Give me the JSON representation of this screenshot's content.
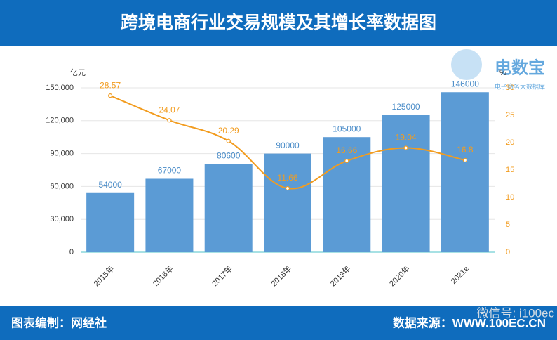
{
  "chart_data": {
    "type": "bar",
    "title": "跨境电商行业交易规模及其增长率数据图",
    "y_unit": "亿元",
    "y2_unit": "%",
    "categories": [
      "2015年",
      "2016年",
      "2017年",
      "2018年",
      "2019年",
      "2020年",
      "2021e"
    ],
    "series": [
      {
        "name": "交易规模",
        "color": "#5b9bd5",
        "label_color": "#4a8cc8",
        "values": [
          54000,
          67000,
          80600,
          90000,
          105000,
          125000,
          146000
        ]
      },
      {
        "name": "增长率",
        "type": "line",
        "axis": "y2",
        "color": "#f29c1f",
        "values": [
          28.57,
          24.07,
          20.29,
          11.66,
          16.66,
          19.04,
          16.8
        ]
      }
    ],
    "ylim": [
      0,
      150000
    ],
    "yticks": [
      0,
      {
        "value": 30000,
        "label": "30,000"
      },
      {
        "value": 60000,
        "label": "60,000"
      },
      {
        "value": 90000,
        "label": "90,000"
      },
      {
        "value": 120000,
        "label": "120,000"
      },
      {
        "value": 150000,
        "label": "150,000"
      }
    ],
    "y2lim": [
      0,
      30
    ],
    "y2ticks": [
      0,
      5,
      10,
      15,
      20,
      25,
      30
    ],
    "grid": true,
    "credit": "图表编制：网经社",
    "source": "数据来源：WWW.100EC.CN",
    "watermark": "微信号: i100ec",
    "logo": {
      "name": "电数宝",
      "tagline": "电子商务大数据库"
    }
  }
}
